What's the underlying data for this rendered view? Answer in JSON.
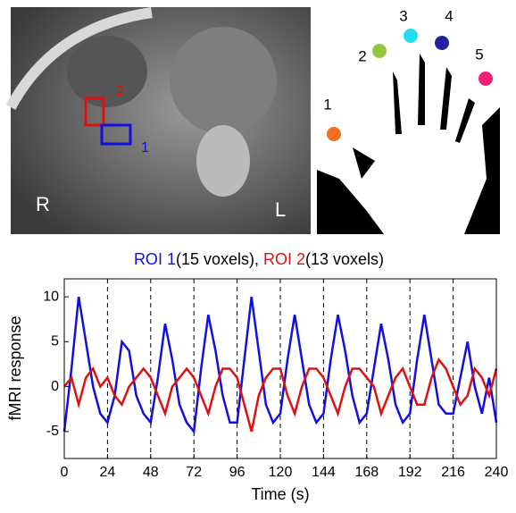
{
  "brain_panel": {
    "side_left": "R",
    "side_right": "L",
    "roi1_label": "1",
    "roi2_label": "2",
    "roi1_color": "#1010e0",
    "roi2_color": "#e01010"
  },
  "hand_panel": {
    "finger_labels": [
      "1",
      "2",
      "3",
      "4",
      "5"
    ],
    "finger_colors": [
      "#f07020",
      "#90c840",
      "#20e0f0",
      "#2020a0",
      "#f0207a"
    ]
  },
  "chart_data": {
    "type": "line",
    "title_parts": [
      {
        "text": "ROI 1",
        "color": "#1010e0"
      },
      {
        "text": "(15 voxels), ",
        "color": "#000000"
      },
      {
        "text": "ROI 2",
        "color": "#e01010"
      },
      {
        "text": "(13 voxels)",
        "color": "#000000"
      }
    ],
    "xlabel": "Time (s)",
    "ylabel": "fMRI response",
    "x": [
      0,
      4,
      8,
      12,
      16,
      20,
      24,
      28,
      32,
      36,
      40,
      44,
      48,
      52,
      56,
      60,
      64,
      68,
      72,
      76,
      80,
      84,
      88,
      92,
      96,
      100,
      104,
      108,
      112,
      116,
      120,
      124,
      128,
      132,
      136,
      140,
      144,
      148,
      152,
      156,
      160,
      164,
      168,
      172,
      176,
      180,
      184,
      188,
      192,
      196,
      200,
      204,
      208,
      212,
      216,
      220,
      224,
      228,
      232,
      236,
      240
    ],
    "series": [
      {
        "name": "ROI 1",
        "color": "#1010e0",
        "values": [
          -5,
          2,
          10,
          5,
          0,
          -3,
          -4,
          -1,
          5,
          4,
          -1,
          -3,
          -4,
          1,
          7,
          3,
          -2,
          -4,
          -5,
          2,
          8,
          4,
          -1,
          -4,
          -4,
          3,
          10,
          4,
          -2,
          -4,
          -3,
          3,
          8,
          3,
          -2,
          -4,
          -3,
          3,
          8,
          4,
          -1,
          -4,
          -3,
          2,
          7,
          3,
          -2,
          -4,
          -3,
          3,
          8,
          3,
          -2,
          -3,
          -3,
          1,
          5,
          0,
          -3,
          1,
          -4
        ]
      },
      {
        "name": "ROI 2",
        "color": "#e01010",
        "values": [
          0,
          1,
          -2,
          1,
          2,
          0,
          1,
          -1,
          -2,
          0,
          1,
          2,
          1,
          -1,
          -3,
          0,
          1,
          2,
          1,
          -1,
          -3,
          0,
          2,
          2,
          1,
          -2,
          -5,
          -1,
          1,
          2,
          2,
          -1,
          -3,
          0,
          2,
          2,
          1,
          -1,
          -3,
          0,
          2,
          2,
          1,
          0,
          -3,
          -1,
          1,
          2,
          0,
          -2,
          -2,
          1,
          3,
          2,
          0,
          -2,
          -1,
          2,
          1,
          -1,
          2
        ]
      }
    ],
    "xlim": [
      0,
      240
    ],
    "xticks": [
      0,
      24,
      48,
      72,
      96,
      120,
      144,
      168,
      192,
      216,
      240
    ],
    "ylim": [
      -8,
      12
    ],
    "yticks": [
      -5,
      0,
      5,
      10
    ],
    "xgrid": "dashed"
  }
}
